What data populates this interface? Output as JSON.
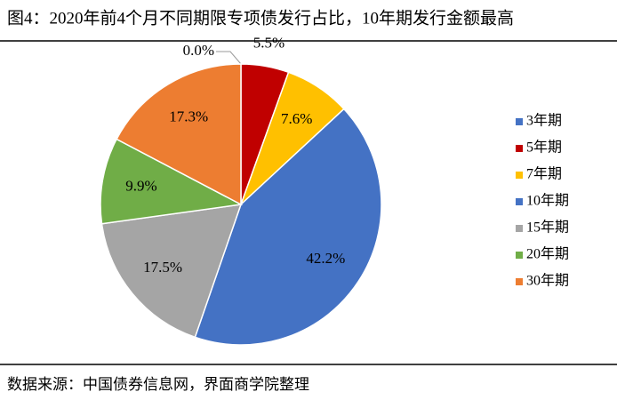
{
  "chart_data": {
    "type": "pie",
    "title": "图4：2020年前4个月不同期限专项债发行占比，10年期发行金额最高",
    "categories": [
      "3年期",
      "5年期",
      "7年期",
      "10年期",
      "15年期",
      "20年期",
      "30年期"
    ],
    "values": [
      0.0,
      5.5,
      7.6,
      42.2,
      17.5,
      9.9,
      17.3
    ],
    "value_labels": [
      "0.0%",
      "5.5%",
      "7.6%",
      "42.2%",
      "17.5%",
      "9.9%",
      "17.3%"
    ],
    "colors": [
      "#4472c4",
      "#c00000",
      "#ffc000",
      "#4472c4",
      "#a5a5a5",
      "#70ad47",
      "#ed7d31"
    ],
    "legend": "right",
    "source": "数据来源：中国债券信息网，界面商学院整理"
  }
}
